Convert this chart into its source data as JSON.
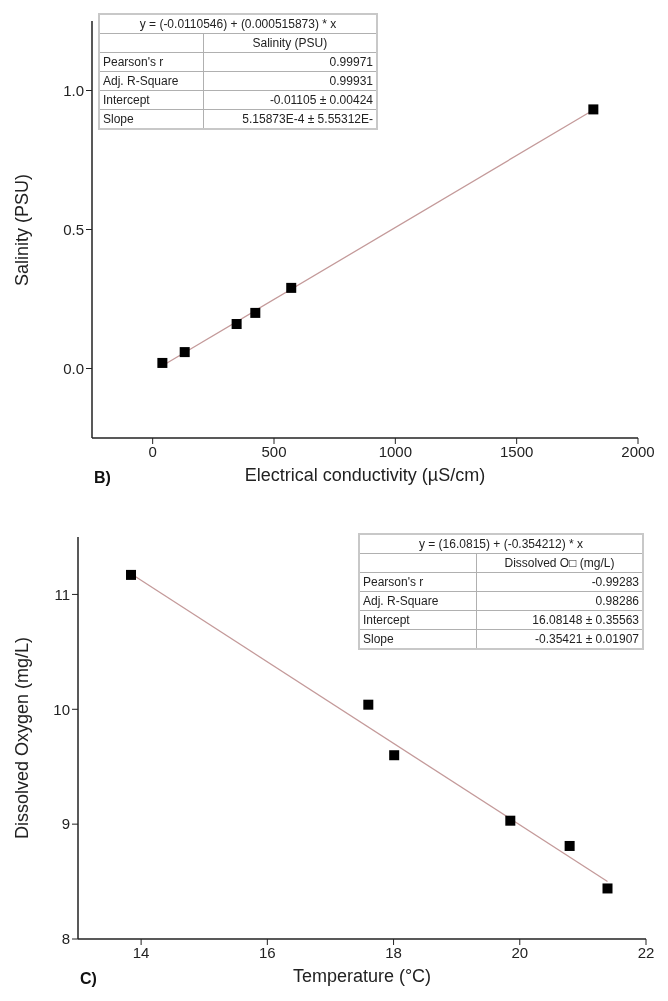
{
  "chart_data": [
    {
      "type": "scatter",
      "xlabel": "Electrical conductivity (µS/cm)",
      "ylabel": "Salinity (PSU)",
      "xlim": [
        -250,
        2000
      ],
      "ylim": [
        -0.25,
        1.25
      ],
      "xticks": [
        0,
        500,
        1000,
        1500,
        2000
      ],
      "yticks": [
        {
          "value": 0,
          "label": "0.0"
        },
        {
          "value": 0.5,
          "label": "0.5"
        },
        {
          "value": 1,
          "label": "1.0"
        }
      ],
      "series": [
        {
          "marker": "square",
          "color": "#000000",
          "x": [
            40,
            132,
            346,
            423,
            571,
            1816
          ],
          "values": [
            0.02,
            0.059,
            0.16,
            0.2,
            0.29,
            0.932
          ]
        },
        {
          "type": "line",
          "marker": "none",
          "color": "#c49a9a",
          "x": [
            40,
            1816
          ],
          "values": [
            0.01,
            0.93
          ]
        }
      ],
      "annotations": [
        "B)",
        "y = (-0.0110546) + (0.000515873) * x",
        "Salinity (PSU)",
        "Pearson's r",
        "0.99971",
        "Adj. R-Square",
        "0.99931",
        "Intercept",
        "-0.01105 ± 0.00424",
        "Slope",
        "5.15873E-4 ± 5.55312E-"
      ]
    },
    {
      "type": "scatter",
      "xlabel": "Temperature (°C)",
      "ylabel": "Dissolved Oxygen (mg/L)",
      "xlim": [
        13,
        22
      ],
      "ylim": [
        8,
        11.5
      ],
      "xticks": [
        14,
        16,
        18,
        20,
        22
      ],
      "yticks": [
        8,
        9,
        10,
        11
      ],
      "series": [
        {
          "marker": "square",
          "color": "#000000",
          "x": [
            13.84,
            17.6,
            18.01,
            19.85,
            20.79,
            21.39
          ],
          "values": [
            11.17,
            10.04,
            9.6,
            9.03,
            8.81,
            8.44
          ]
        },
        {
          "type": "line",
          "marker": "none",
          "color": "#c49a9a",
          "x": [
            13.84,
            21.39
          ],
          "values": [
            11.18,
            8.5
          ]
        }
      ],
      "annotations": [
        "C)",
        "y = (16.0815) + (-0.354212) * x",
        "Dissolved O□ (mg/L)",
        "Pearson's r",
        "-0.99283",
        "Adj. R-Square",
        "0.98286",
        "Intercept",
        "16.08148 ± 0.35563",
        "Slope",
        "-0.35421 ± 0.01907"
      ]
    }
  ]
}
